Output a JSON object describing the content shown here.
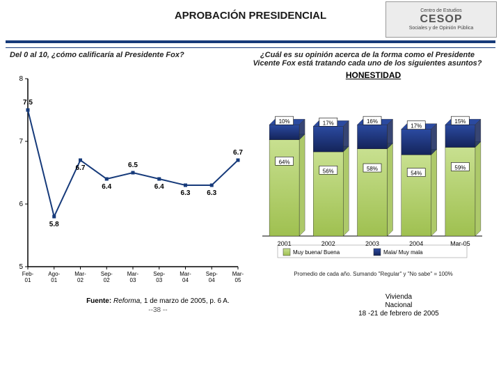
{
  "header": {
    "title": "APROBACIÓN PRESIDENCIAL",
    "logo_top": "Centro de Estudios",
    "logo_main": "CESOP",
    "logo_sub": "Sociales y de Opinión Pública"
  },
  "q_left": "Del 0 al 10, ¿cómo calificaría al Presidente Fox?",
  "q_right": "¿Cuál es su opinión acerca de la forma como el Presidente Vicente Fox está tratando cada uno de los siguientes asuntos?",
  "line_chart": {
    "type": "line",
    "ylim": [
      5,
      8
    ],
    "ytick_step": 1,
    "yticks": [
      "5",
      "6",
      "7",
      "8"
    ],
    "categories": [
      "Feb-01",
      "Ago-01",
      "Mar-02",
      "Sep-02",
      "Mar-03",
      "Sep-03",
      "Mar-04",
      "Sep-04",
      "Mar-05"
    ],
    "values": [
      7.5,
      5.8,
      6.7,
      6.4,
      6.5,
      6.4,
      6.3,
      6.3,
      6.7
    ],
    "value_labels": [
      "7.5",
      "5.8",
      "6.7",
      "6.4",
      "6.5",
      "6.4",
      "6.3",
      "6.3",
      "6.7"
    ],
    "line_color": "#163a7a",
    "marker_color": "#163a7a",
    "marker_size": 5,
    "line_width": 2,
    "axis_color": "#000000",
    "label_fontsize": 8,
    "background": "#ffffff"
  },
  "bar_chart": {
    "subtitle": "HONESTIDAD",
    "type": "stacked-bar",
    "categories": [
      "2001",
      "2002",
      "2003",
      "2004",
      "Mar-05"
    ],
    "series": [
      {
        "name": "Muy buena/ Buena",
        "color_top": "#c8e090",
        "color_bottom": "#9fc050",
        "values": [
          64,
          56,
          58,
          54,
          59
        ],
        "labels": [
          "64%",
          "56%",
          "58%",
          "54%",
          "59%"
        ]
      },
      {
        "name": "Mala/ Muy mala",
        "color_top": "#2b4aa0",
        "color_bottom": "#14245a",
        "values": [
          10,
          17,
          16,
          17,
          15
        ],
        "labels": [
          "10%",
          "17%",
          "16%",
          "17%",
          "15%"
        ]
      }
    ],
    "ylim": [
      0,
      100
    ],
    "bar_width": 0.68,
    "axis_color": "#000000",
    "grid_color": "#cccccc",
    "label_box_bg": "#ffffff",
    "label_box_border": "#000000",
    "label_fontsize": 8,
    "legend": [
      "Muy buena/ Buena",
      "Mala/ Muy mala"
    ]
  },
  "footnote": "Promedio de cada año. Sumando \"Regular\" y \"No sabe\" = 100%",
  "source": {
    "prefix": "Fuente: ",
    "text": "Reforma,",
    "rest": " 1 de marzo de 2005, p. 6 A."
  },
  "box_right": {
    "l1": "Vivienda",
    "l2": "Nacional",
    "l3": "18 -21 de febrero de 2005"
  },
  "pagenum": "--38 --"
}
